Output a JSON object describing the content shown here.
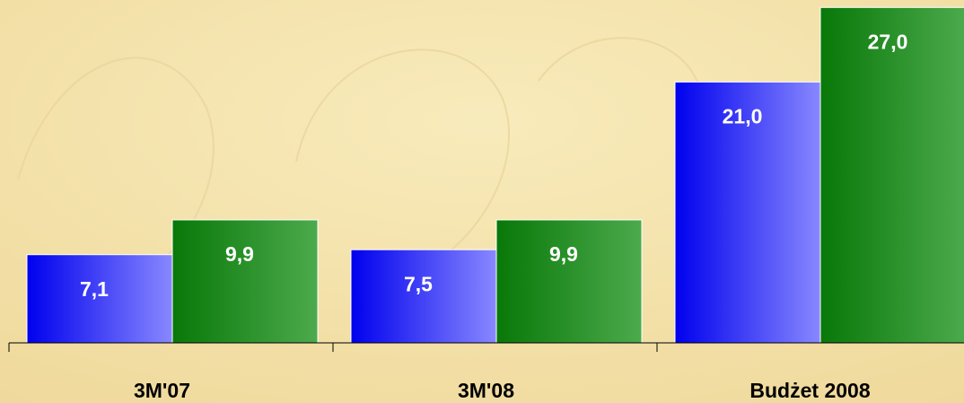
{
  "chart_data": {
    "type": "bar",
    "categories": [
      "3M'07",
      "3M'08",
      "Budżet 2008"
    ],
    "series": [
      {
        "color": "#2020ff",
        "values": [
          7.1,
          7.5,
          21.0
        ],
        "value_labels": [
          "7,1",
          "7,5",
          "21,0"
        ]
      },
      {
        "color": "#2a922a",
        "values": [
          9.9,
          9.9,
          27.0
        ],
        "value_labels": [
          "9,9",
          "9,9",
          "27,0"
        ]
      }
    ],
    "ylim": [
      0,
      27.6
    ]
  }
}
